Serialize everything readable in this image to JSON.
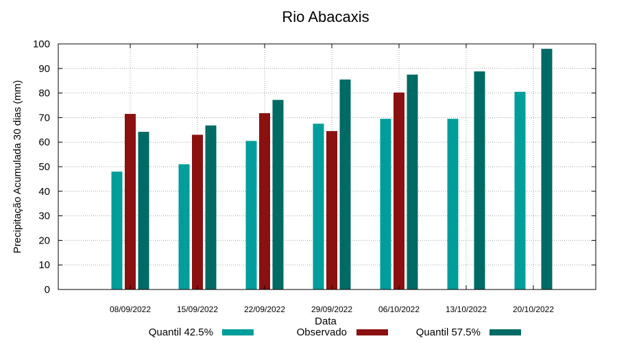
{
  "chart_data": {
    "type": "bar",
    "title": "Rio Abacaxis",
    "xlabel": "Data",
    "ylabel": "Precipitação Acumulada 30 dias (mm)",
    "ylim": [
      0,
      100
    ],
    "yticks": [
      "0",
      "10",
      "20",
      "30",
      "40",
      "50",
      "60",
      "70",
      "80",
      "90",
      "100"
    ],
    "grid": true,
    "legend_position": "bottom",
    "categories": [
      "08/09/2022",
      "15/09/2022",
      "22/09/2022",
      "29/09/2022",
      "06/10/2022",
      "13/10/2022",
      "20/10/2022"
    ],
    "series": [
      {
        "name": "Quantil 42.5%",
        "color": "#009e9a",
        "values": [
          48,
          51,
          60.5,
          67.5,
          69.5,
          69.5,
          80.5
        ]
      },
      {
        "name": "Observado",
        "color": "#8b1010",
        "values": [
          71.5,
          63,
          71.8,
          64.5,
          80.2,
          null,
          null
        ]
      },
      {
        "name": "Quantil 57.5%",
        "color": "#006a65",
        "values": [
          64.2,
          66.8,
          77.2,
          85.5,
          87.5,
          88.8,
          98
        ]
      }
    ]
  }
}
